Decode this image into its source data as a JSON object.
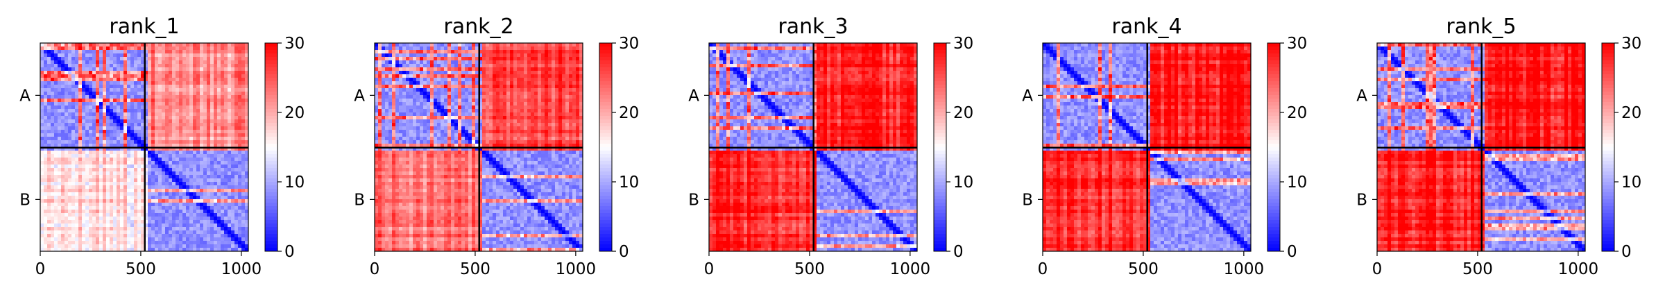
{
  "colorbar": {
    "min": 0,
    "max": 30,
    "ticks": [
      0,
      10,
      20,
      30
    ],
    "colormap": "bwr"
  },
  "colors": {
    "low": "#0000ff",
    "mid": "#ffffff",
    "high": "#ff0000"
  },
  "chart_data": [
    {
      "type": "heatmap",
      "title": "rank_1",
      "chains": [
        "A",
        "B"
      ],
      "chain_boundary": 520,
      "size": 1035,
      "xticks": [
        0,
        500,
        1000
      ],
      "vmin": 0,
      "vmax": 30,
      "inter_chain_pae": [
        22,
        17
      ]
    },
    {
      "type": "heatmap",
      "title": "rank_2",
      "chains": [
        "A",
        "B"
      ],
      "chain_boundary": 520,
      "size": 1035,
      "xticks": [
        0,
        500,
        1000
      ],
      "vmin": 0,
      "vmax": 30,
      "inter_chain_pae": [
        26,
        23
      ]
    },
    {
      "type": "heatmap",
      "title": "rank_3",
      "chains": [
        "A",
        "B"
      ],
      "chain_boundary": 520,
      "size": 1035,
      "xticks": [
        0,
        500,
        1000
      ],
      "vmin": 0,
      "vmax": 30,
      "inter_chain_pae": [
        28,
        28
      ]
    },
    {
      "type": "heatmap",
      "title": "rank_4",
      "chains": [
        "A",
        "B"
      ],
      "chain_boundary": 520,
      "size": 1035,
      "xticks": [
        0,
        500,
        1000
      ],
      "vmin": 0,
      "vmax": 30,
      "inter_chain_pae": [
        29,
        28
      ]
    },
    {
      "type": "heatmap",
      "title": "rank_5",
      "chains": [
        "A",
        "B"
      ],
      "chain_boundary": 520,
      "size": 1035,
      "xticks": [
        0,
        500,
        1000
      ],
      "vmin": 0,
      "vmax": 30,
      "inter_chain_pae": [
        29,
        28
      ]
    }
  ]
}
